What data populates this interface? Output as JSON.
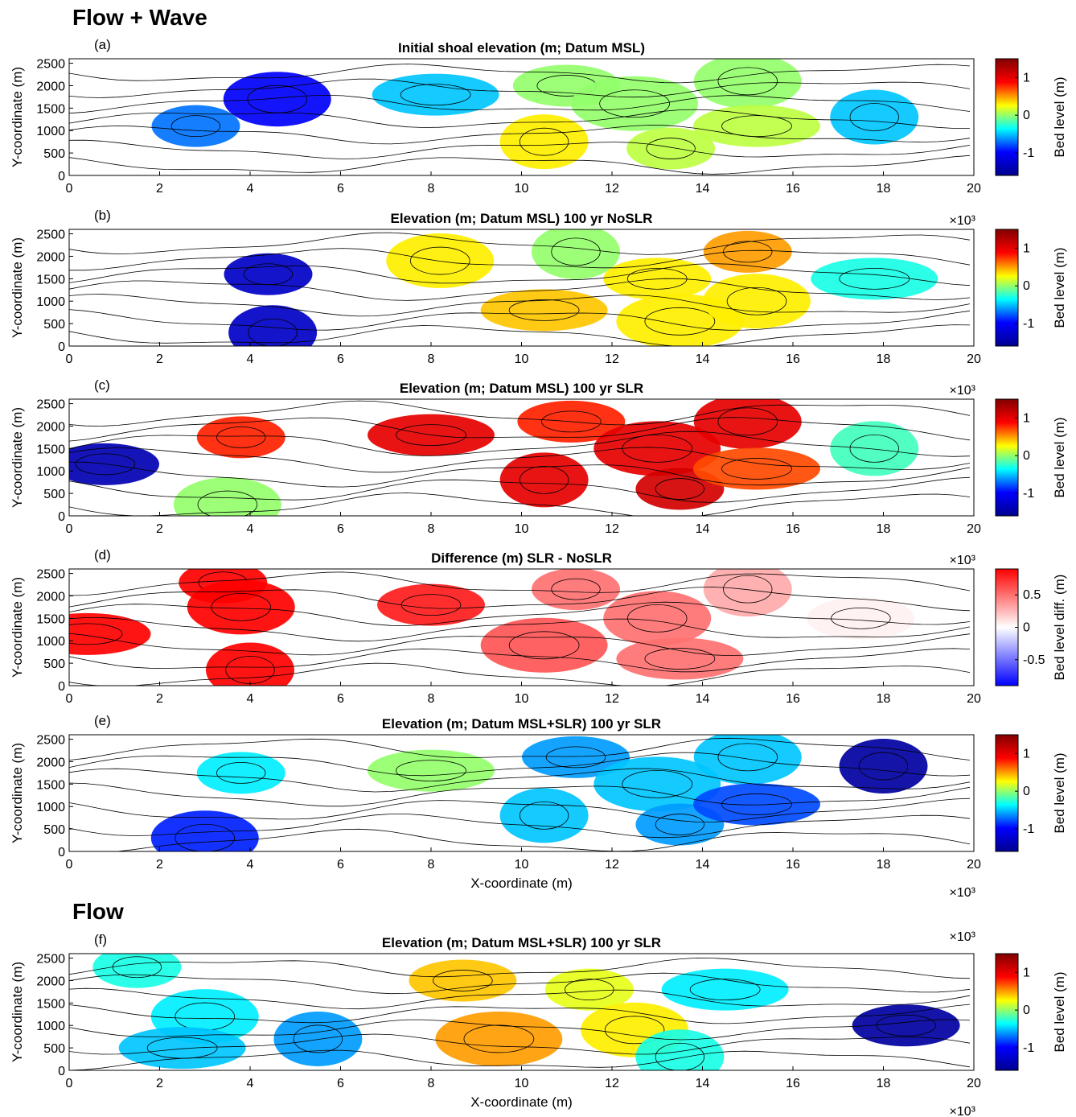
{
  "sections": [
    {
      "id": "wave",
      "title": "Flow + Wave"
    },
    {
      "id": "flow",
      "title": "Flow"
    }
  ],
  "colors": {
    "elevation_colormap": [
      "#00008f",
      "#0000ff",
      "#00ffff",
      "#ffff00",
      "#ff0000",
      "#800000"
    ],
    "difference_colormap": [
      "#0000ff",
      "#ffffff",
      "#ff0000"
    ],
    "contour": "#000000"
  },
  "chart_data": [
    {
      "type": "heatmap",
      "panel": "(a)",
      "title": "Initial shoal elevation (m; Datum MSL)",
      "xlabel": "",
      "ylabel": "Y-coordinate (m)",
      "xlim": [
        0,
        20000
      ],
      "ylim": [
        0,
        2600
      ],
      "x_ticks": [
        "0",
        "2",
        "4",
        "6",
        "8",
        "10",
        "12",
        "14",
        "16",
        "18",
        "20"
      ],
      "x_multiplier": "",
      "y_ticks": [
        "0",
        "500",
        "1000",
        "1500",
        "2000",
        "2500"
      ],
      "colorbar": {
        "label": "Bed level (m)",
        "range": [
          -1.6,
          1.5
        ],
        "ticks": [
          "-1",
          "0",
          "1"
        ],
        "tick_values": [
          -1,
          0,
          1
        ]
      },
      "contours": "black",
      "shoals": [
        {
          "x": 2800,
          "y": 1100,
          "value": -0.7
        },
        {
          "x": 4600,
          "y": 1700,
          "value": -1.0
        },
        {
          "x": 8100,
          "y": 1800,
          "value": -0.5
        },
        {
          "x": 10500,
          "y": 750,
          "value": 0.3
        },
        {
          "x": 11000,
          "y": 2000,
          "value": 0.0
        },
        {
          "x": 12500,
          "y": 1600,
          "value": 0.0
        },
        {
          "x": 13300,
          "y": 600,
          "value": 0.1
        },
        {
          "x": 15000,
          "y": 2100,
          "value": 0.0
        },
        {
          "x": 15200,
          "y": 1100,
          "value": 0.1
        },
        {
          "x": 17800,
          "y": 1300,
          "value": -0.5
        }
      ]
    },
    {
      "type": "heatmap",
      "panel": "(b)",
      "title": "Elevation (m; Datum MSL) 100 yr NoSLR",
      "xlabel": "",
      "ylabel": "Y-coordinate (m)",
      "xlim": [
        0,
        20000
      ],
      "ylim": [
        0,
        2600
      ],
      "x_ticks": [
        "0",
        "2",
        "4",
        "6",
        "8",
        "10",
        "12",
        "14",
        "16",
        "18",
        "20"
      ],
      "x_multiplier": "×10³",
      "y_ticks": [
        "0",
        "500",
        "1000",
        "1500",
        "2000",
        "2500"
      ],
      "colorbar": {
        "label": "Bed level (m)",
        "range": [
          -1.6,
          1.5
        ],
        "ticks": [
          "-1",
          "0",
          "1"
        ],
        "tick_values": [
          -1,
          0,
          1
        ]
      },
      "contours": "black",
      "shoals": [
        {
          "x": 4400,
          "y": 1600,
          "value": -1.3
        },
        {
          "x": 8200,
          "y": 1900,
          "value": 0.3
        },
        {
          "x": 10500,
          "y": 800,
          "value": 0.4
        },
        {
          "x": 11200,
          "y": 2100,
          "value": 0.0
        },
        {
          "x": 13000,
          "y": 1500,
          "value": 0.3
        },
        {
          "x": 13500,
          "y": 550,
          "value": 0.3
        },
        {
          "x": 15000,
          "y": 2100,
          "value": 0.5
        },
        {
          "x": 15200,
          "y": 1000,
          "value": 0.3
        },
        {
          "x": 17800,
          "y": 1500,
          "value": -0.3
        },
        {
          "x": 4500,
          "y": 300,
          "value": -1.3
        }
      ]
    },
    {
      "type": "heatmap",
      "panel": "(c)",
      "title": "Elevation (m; Datum MSL) 100 yr SLR",
      "xlabel": "",
      "ylabel": "Y-coordinate (m)",
      "xlim": [
        0,
        20000
      ],
      "ylim": [
        0,
        2600
      ],
      "x_ticks": [
        "0",
        "2",
        "4",
        "6",
        "8",
        "10",
        "12",
        "14",
        "16",
        "18",
        "20"
      ],
      "x_multiplier": "×10³",
      "y_ticks": [
        "0",
        "500",
        "1000",
        "1500",
        "2000",
        "2500"
      ],
      "colorbar": {
        "label": "Bed level (m)",
        "range": [
          -1.6,
          1.5
        ],
        "ticks": [
          "-1",
          "0",
          "1"
        ],
        "tick_values": [
          -1,
          0,
          1
        ]
      },
      "contours": "black",
      "shoals": [
        {
          "x": 3800,
          "y": 1750,
          "value": 0.8
        },
        {
          "x": 3500,
          "y": 250,
          "value": 0.0
        },
        {
          "x": 8000,
          "y": 1800,
          "value": 1.0
        },
        {
          "x": 10500,
          "y": 800,
          "value": 1.0
        },
        {
          "x": 11100,
          "y": 2100,
          "value": 0.8
        },
        {
          "x": 13000,
          "y": 1500,
          "value": 1.0
        },
        {
          "x": 13500,
          "y": 600,
          "value": 1.1
        },
        {
          "x": 15000,
          "y": 2100,
          "value": 1.0
        },
        {
          "x": 15200,
          "y": 1050,
          "value": 0.7
        },
        {
          "x": 17800,
          "y": 1500,
          "value": -0.2
        },
        {
          "x": 800,
          "y": 1150,
          "value": -1.4
        }
      ]
    },
    {
      "type": "heatmap",
      "panel": "(d)",
      "title": "Difference (m) SLR - NoSLR",
      "xlabel": "",
      "ylabel": "Y-coordinate (m)",
      "xlim": [
        0,
        20000
      ],
      "ylim": [
        0,
        2600
      ],
      "x_ticks": [
        "0",
        "2",
        "4",
        "6",
        "8",
        "10",
        "12",
        "14",
        "16",
        "18",
        "20"
      ],
      "x_multiplier": "×10³",
      "y_ticks": [
        "0",
        "500",
        "1000",
        "1500",
        "2000",
        "2500"
      ],
      "colorbar": {
        "label": "Bed level diff. (m)",
        "range": [
          -0.9,
          0.9
        ],
        "ticks": [
          "-0.5",
          "0",
          "0.5"
        ],
        "tick_values": [
          -0.5,
          0,
          0.5
        ]
      },
      "contours": "black",
      "shoals": [
        {
          "x": 3400,
          "y": 2300,
          "value": 0.9
        },
        {
          "x": 3800,
          "y": 1750,
          "value": 0.9
        },
        {
          "x": 400,
          "y": 1150,
          "value": 0.9
        },
        {
          "x": 4000,
          "y": 350,
          "value": 0.9
        },
        {
          "x": 8000,
          "y": 1800,
          "value": 0.8
        },
        {
          "x": 10500,
          "y": 900,
          "value": 0.6
        },
        {
          "x": 11200,
          "y": 2150,
          "value": 0.5
        },
        {
          "x": 13000,
          "y": 1500,
          "value": 0.5
        },
        {
          "x": 13500,
          "y": 600,
          "value": 0.5
        },
        {
          "x": 15000,
          "y": 2150,
          "value": 0.3
        },
        {
          "x": 17500,
          "y": 1500,
          "value": 0.05
        }
      ]
    },
    {
      "type": "heatmap",
      "panel": "(e)",
      "title": "Elevation (m; Datum MSL+SLR) 100 yr SLR",
      "xlabel": "X-coordinate (m)",
      "ylabel": "Y-coordinate (m)",
      "xlim": [
        0,
        20000
      ],
      "ylim": [
        0,
        2600
      ],
      "x_ticks": [
        "0",
        "2",
        "4",
        "6",
        "8",
        "10",
        "12",
        "14",
        "16",
        "18",
        "20"
      ],
      "x_multiplier": "×10³",
      "y_ticks": [
        "0",
        "500",
        "1000",
        "1500",
        "2000",
        "2500"
      ],
      "colorbar": {
        "label": "Bed level (m)",
        "range": [
          -1.6,
          1.5
        ],
        "ticks": [
          "-1",
          "0",
          "1"
        ],
        "tick_values": [
          -1,
          0,
          1
        ]
      },
      "contours": "black",
      "shoals": [
        {
          "x": 3800,
          "y": 1750,
          "value": -0.4
        },
        {
          "x": 3000,
          "y": 300,
          "value": -0.9
        },
        {
          "x": 8000,
          "y": 1800,
          "value": 0.0
        },
        {
          "x": 10500,
          "y": 800,
          "value": -0.5
        },
        {
          "x": 11200,
          "y": 2100,
          "value": -0.6
        },
        {
          "x": 13000,
          "y": 1500,
          "value": -0.5
        },
        {
          "x": 13500,
          "y": 600,
          "value": -0.6
        },
        {
          "x": 15000,
          "y": 2100,
          "value": -0.5
        },
        {
          "x": 15200,
          "y": 1050,
          "value": -0.8
        },
        {
          "x": 18000,
          "y": 1900,
          "value": -1.5
        }
      ]
    },
    {
      "type": "heatmap",
      "panel": "(f)",
      "title": "Elevation (m; Datum MSL+SLR) 100 yr SLR",
      "xlabel": "X-coordinate (m)",
      "ylabel": "Y-coordinate (m)",
      "xlim": [
        0,
        20000
      ],
      "ylim": [
        0,
        2600
      ],
      "x_ticks": [
        "0",
        "2",
        "4",
        "6",
        "8",
        "10",
        "12",
        "14",
        "16",
        "18",
        "20"
      ],
      "x_multiplier": "×10³",
      "top_multiplier": "×10³",
      "y_ticks": [
        "0",
        "500",
        "1000",
        "1500",
        "2000",
        "2500"
      ],
      "colorbar": {
        "label": "Bed level (m)",
        "range": [
          -1.6,
          1.5
        ],
        "ticks": [
          "-1",
          "0",
          "1"
        ],
        "tick_values": [
          -1,
          0,
          1
        ]
      },
      "contours": "black",
      "shoals": [
        {
          "x": 1500,
          "y": 2300,
          "value": -0.3
        },
        {
          "x": 3000,
          "y": 1200,
          "value": -0.4
        },
        {
          "x": 2500,
          "y": 500,
          "value": -0.5
        },
        {
          "x": 5500,
          "y": 700,
          "value": -0.6
        },
        {
          "x": 8700,
          "y": 2000,
          "value": 0.4
        },
        {
          "x": 9500,
          "y": 700,
          "value": 0.5
        },
        {
          "x": 11500,
          "y": 1800,
          "value": 0.2
        },
        {
          "x": 12500,
          "y": 900,
          "value": 0.3
        },
        {
          "x": 14500,
          "y": 1800,
          "value": -0.4
        },
        {
          "x": 13500,
          "y": 300,
          "value": -0.3
        },
        {
          "x": 18500,
          "y": 1000,
          "value": -1.5
        }
      ]
    }
  ]
}
